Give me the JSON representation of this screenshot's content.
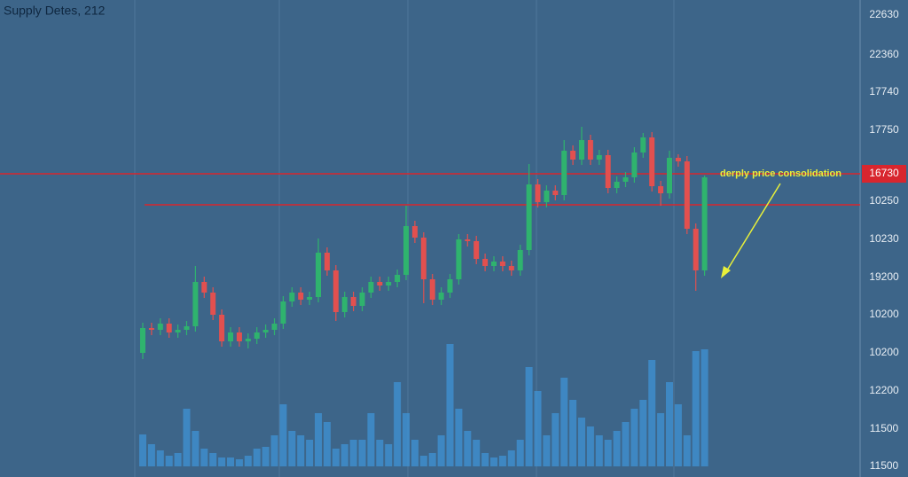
{
  "chart_data": {
    "type": "candlestick",
    "title": "Supply Detes, 212",
    "ylim": [
      0,
      538
    ],
    "up_color": "#2fb36e",
    "down_color": "#e2504f",
    "volume_color": "#3f93d6",
    "price_axis_labels": [
      "22630",
      "22360",
      "17740",
      "17750",
      "10250",
      "10230",
      "19200",
      "10200",
      "10200",
      "12200",
      "11500",
      "11500"
    ],
    "levels": [
      {
        "value": 342,
        "label": "16730"
      },
      {
        "value": 307
      }
    ],
    "level_color": "#d8262e",
    "annotation": {
      "text": "derply price consolidation",
      "color": "#e8f03a"
    },
    "open": [
      140,
      168,
      166,
      173,
      163,
      166,
      170,
      220,
      208,
      183,
      153,
      163,
      153,
      156,
      163,
      166,
      173,
      198,
      208,
      200,
      203,
      253,
      233,
      186,
      203,
      193,
      208,
      220,
      216,
      220,
      228,
      283,
      270,
      223,
      200,
      208,
      223,
      268,
      266,
      246,
      238,
      243,
      238,
      233,
      256,
      330,
      310,
      323,
      318,
      368,
      358,
      380,
      358,
      363,
      326,
      333,
      338,
      366,
      383,
      328,
      320,
      360,
      356,
      280,
      233
    ],
    "high": [
      174,
      174,
      179,
      179,
      172,
      176,
      238,
      226,
      214,
      189,
      169,
      169,
      162,
      169,
      172,
      179,
      204,
      214,
      214,
      209,
      269,
      259,
      239,
      209,
      209,
      214,
      226,
      226,
      226,
      234,
      306,
      289,
      276,
      229,
      214,
      229,
      274,
      274,
      272,
      252,
      249,
      249,
      244,
      262,
      353,
      336,
      329,
      329,
      380,
      374,
      395,
      386,
      369,
      369,
      339,
      344,
      372,
      388,
      389,
      334,
      368,
      364,
      362,
      286,
      340
    ],
    "low": [
      133,
      160,
      160,
      157,
      157,
      160,
      164,
      202,
      177,
      147,
      147,
      147,
      145,
      150,
      157,
      160,
      167,
      192,
      194,
      194,
      197,
      227,
      176,
      180,
      187,
      187,
      202,
      210,
      210,
      214,
      222,
      264,
      196,
      194,
      194,
      202,
      217,
      260,
      240,
      232,
      232,
      232,
      227,
      227,
      250,
      304,
      304,
      312,
      312,
      352,
      352,
      352,
      352,
      320,
      320,
      327,
      332,
      360,
      322,
      306,
      314,
      350,
      274,
      210,
      227
    ],
    "close": [
      168,
      166,
      173,
      163,
      166,
      170,
      220,
      208,
      183,
      153,
      163,
      153,
      156,
      163,
      166,
      173,
      198,
      208,
      200,
      203,
      253,
      233,
      186,
      203,
      193,
      208,
      220,
      216,
      220,
      228,
      283,
      270,
      223,
      200,
      208,
      223,
      268,
      266,
      246,
      238,
      243,
      238,
      233,
      256,
      330,
      310,
      323,
      318,
      368,
      358,
      380,
      358,
      363,
      326,
      333,
      338,
      366,
      383,
      328,
      320,
      360,
      356,
      280,
      233,
      338
    ],
    "volume": [
      36,
      25,
      18,
      12,
      15,
      65,
      40,
      20,
      15,
      10,
      10,
      8,
      12,
      20,
      22,
      35,
      70,
      40,
      35,
      30,
      60,
      50,
      20,
      25,
      30,
      30,
      60,
      30,
      25,
      95,
      60,
      30,
      12,
      15,
      35,
      138,
      65,
      40,
      30,
      15,
      10,
      12,
      18,
      30,
      112,
      85,
      35,
      60,
      100,
      75,
      55,
      45,
      35,
      30,
      40,
      50,
      65,
      75,
      120,
      60,
      95,
      70,
      35,
      130,
      132
    ]
  }
}
